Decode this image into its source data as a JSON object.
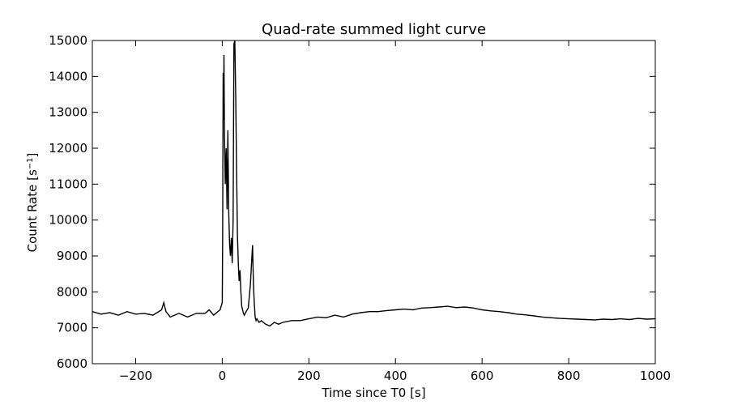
{
  "chart_data": {
    "type": "line",
    "title": "Quad-rate summed light curve",
    "xlabel": "Time since T0 [s]",
    "ylabel_main": "Count Rate [s",
    "ylabel_sup": "−1",
    "ylabel_end": "]",
    "xlim": [
      -300,
      1000
    ],
    "ylim": [
      6000,
      15000
    ],
    "x_ticks": [
      -200,
      0,
      200,
      400,
      600,
      800,
      1000
    ],
    "x_tick_labels": [
      "−200",
      "0",
      "200",
      "400",
      "600",
      "800",
      "1000"
    ],
    "y_ticks": [
      6000,
      7000,
      8000,
      9000,
      10000,
      11000,
      12000,
      13000,
      14000,
      15000
    ],
    "y_tick_labels": [
      "6000",
      "7000",
      "8000",
      "9000",
      "10000",
      "11000",
      "12000",
      "13000",
      "14000",
      "15000"
    ],
    "grid": false,
    "line_color": "#000000",
    "series": [
      {
        "x": [
          -300,
          -280,
          -260,
          -240,
          -220,
          -200,
          -180,
          -160,
          -140,
          -135,
          -130,
          -120,
          -100,
          -80,
          -60,
          -40,
          -30,
          -20,
          -10,
          -5,
          0,
          1,
          2,
          3,
          4,
          5,
          7,
          9,
          11,
          13,
          15,
          17,
          19,
          21,
          23,
          25,
          27,
          29,
          31,
          33,
          35,
          37,
          39,
          41,
          43,
          45,
          47,
          49,
          51,
          55,
          60,
          65,
          70,
          72,
          74,
          76,
          78,
          80,
          85,
          90,
          100,
          110,
          120,
          130,
          140,
          160,
          180,
          200,
          220,
          240,
          260,
          280,
          300,
          320,
          340,
          360,
          380,
          400,
          420,
          440,
          460,
          480,
          500,
          520,
          540,
          560,
          580,
          600,
          620,
          640,
          660,
          680,
          700,
          720,
          740,
          760,
          780,
          800,
          820,
          840,
          860,
          880,
          900,
          920,
          940,
          960,
          980,
          1000
        ],
        "y": [
          7450,
          7380,
          7420,
          7350,
          7450,
          7380,
          7400,
          7350,
          7500,
          7700,
          7450,
          7300,
          7400,
          7300,
          7400,
          7400,
          7500,
          7350,
          7450,
          7500,
          7700,
          9600,
          14100,
          12800,
          14600,
          12400,
          11000,
          12000,
          10300,
          12500,
          10200,
          9300,
          9000,
          9500,
          8800,
          10000,
          14900,
          15000,
          13500,
          11500,
          9600,
          8800,
          8300,
          8600,
          8000,
          7600,
          7500,
          7400,
          7350,
          7450,
          7550,
          8200,
          9300,
          8200,
          7700,
          7300,
          7200,
          7250,
          7150,
          7200,
          7100,
          7050,
          7150,
          7100,
          7150,
          7200,
          7200,
          7250,
          7300,
          7280,
          7350,
          7300,
          7380,
          7420,
          7450,
          7450,
          7480,
          7500,
          7520,
          7500,
          7550,
          7560,
          7580,
          7600,
          7560,
          7580,
          7550,
          7500,
          7470,
          7450,
          7420,
          7380,
          7360,
          7330,
          7300,
          7280,
          7260,
          7250,
          7240,
          7230,
          7220,
          7240,
          7230,
          7250,
          7230,
          7260,
          7240,
          7250
        ]
      }
    ]
  }
}
